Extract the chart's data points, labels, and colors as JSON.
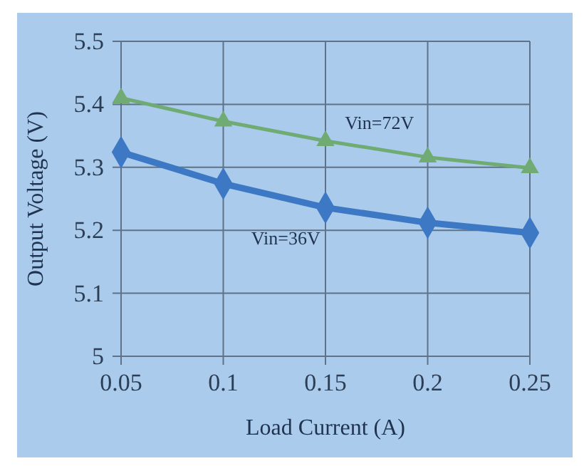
{
  "chart_data": {
    "type": "line",
    "xlabel": "Load Current (A)",
    "ylabel": "Output Voltage (V)",
    "x": [
      0.05,
      0.1,
      0.15,
      0.2,
      0.25
    ],
    "series": [
      {
        "name": "Vin=72V",
        "color": "#6fab72",
        "values": [
          5.41,
          5.373,
          5.342,
          5.316,
          5.299
        ],
        "marker": "triangle"
      },
      {
        "name": "Vin=36V",
        "color": "#3c78c4",
        "values": [
          5.324,
          5.274,
          5.236,
          5.212,
          5.196
        ],
        "marker": "diamond"
      }
    ],
    "xlim": [
      0.05,
      0.25
    ],
    "xticks": [
      0.05,
      0.1,
      0.15,
      0.2,
      0.25
    ],
    "ylim": [
      5,
      5.5
    ],
    "yticks": [
      5,
      5.1,
      5.2,
      5.3,
      5.4,
      5.5
    ],
    "grid": true
  }
}
